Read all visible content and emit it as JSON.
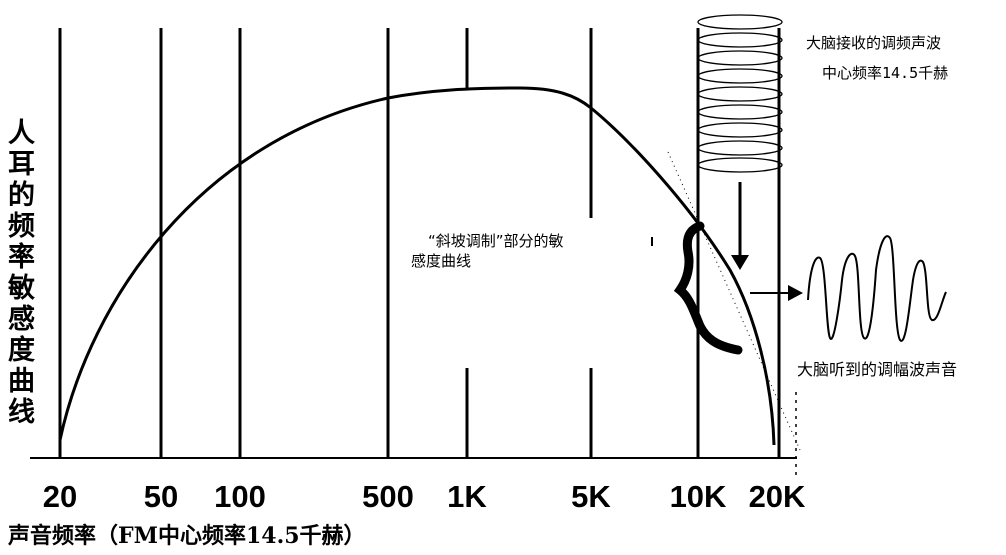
{
  "x_axis": {
    "ticks": [
      "20",
      "50",
      "100",
      "500",
      "1K",
      "5K",
      "10K",
      "20K"
    ],
    "label": "声音频率（FM中心频率14.5千赫）"
  },
  "y_axis": {
    "label": "人耳的频率敏感度曲线"
  },
  "annotations": {
    "carrier": [
      "大脑接收的调频声波",
      "中心频率14.5千赫"
    ],
    "slope": [
      "“斜坡调制”部分的敏",
      "感度曲线"
    ],
    "output": "大脑听到的调幅波声音"
  },
  "colors": {
    "ink": "#000000",
    "background": "#ffffff"
  }
}
